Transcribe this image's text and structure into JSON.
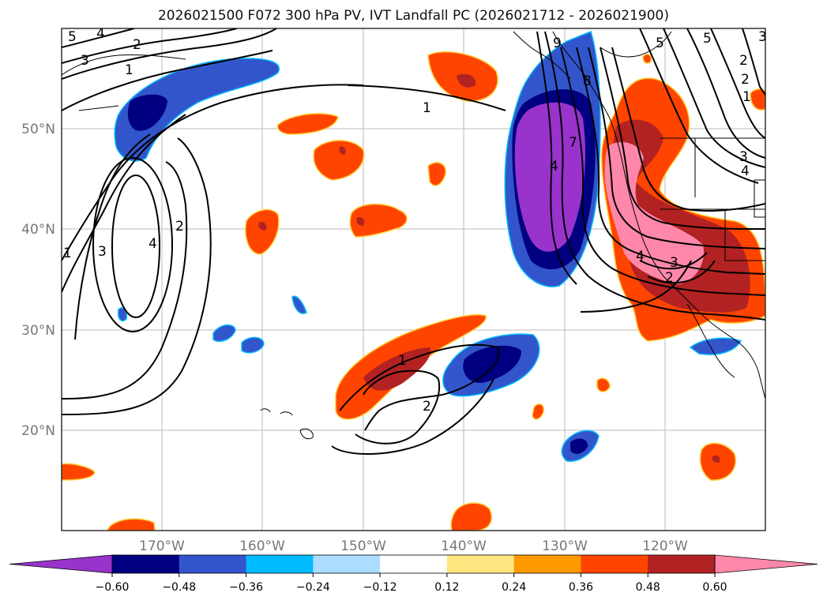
{
  "title": "2026021500 F072 300 hPa PV, IVT Landfall PC (2026021712 - 2026021900)",
  "lat_labels": [
    "50°N",
    "40°N",
    "30°N",
    "20°N"
  ],
  "lon_labels": [
    "170°W",
    "160°W",
    "150°W",
    "140°W",
    "130°W",
    "120°W"
  ],
  "contour_labels": [
    "5",
    "4",
    "3",
    "2",
    "1",
    "1",
    "2",
    "3",
    "4",
    "1",
    "3",
    "4",
    "2",
    "1",
    "2",
    "9",
    "8",
    "7",
    "4",
    "5",
    "3",
    "2",
    "5",
    "2",
    "1",
    "3",
    "4"
  ],
  "colorbar": {
    "colors": [
      "#9933cc",
      "#000080",
      "#3355cc",
      "#00bbff",
      "#aaddff",
      "#ffffff",
      "#ffe680",
      "#ff9900",
      "#ff4400",
      "#b22222",
      "#ff88aa"
    ],
    "tick_labels": [
      "−0.60",
      "−0.48",
      "−0.36",
      "−0.24",
      "−0.12",
      "0.12",
      "0.24",
      "0.36",
      "0.48",
      "0.60"
    ]
  }
}
